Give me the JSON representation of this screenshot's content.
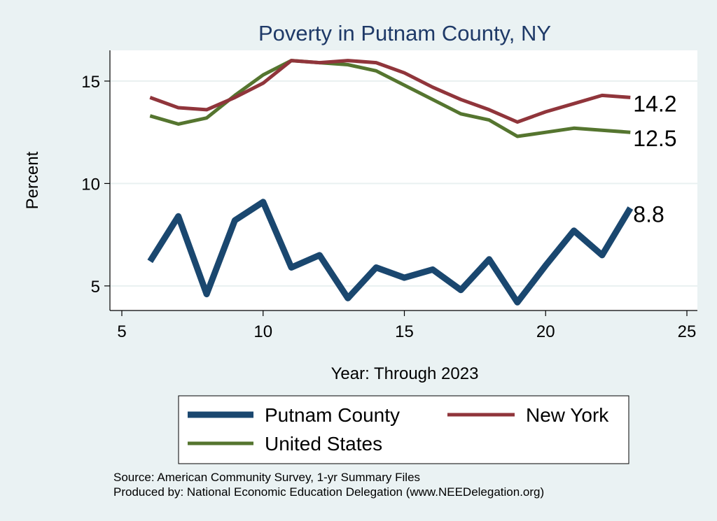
{
  "chart_data": {
    "type": "line",
    "title": "Poverty in Putnam County, NY",
    "xlabel": "Year: Through 2023",
    "ylabel": "Percent",
    "xlim": [
      5,
      25
    ],
    "ylim": [
      3.8,
      16.5
    ],
    "xticks": [
      5,
      10,
      15,
      20,
      25
    ],
    "yticks": [
      5,
      10,
      15
    ],
    "grid": true,
    "x": [
      6,
      7,
      8,
      9,
      10,
      11,
      12,
      13,
      14,
      15,
      16,
      17,
      18,
      19,
      20,
      21,
      22,
      23
    ],
    "series": [
      {
        "name": "Putnam County",
        "color": "#1a476f",
        "values": [
          6.2,
          8.4,
          4.6,
          8.2,
          9.1,
          5.9,
          6.5,
          4.4,
          5.9,
          5.4,
          5.8,
          4.8,
          6.3,
          4.2,
          6.0,
          7.7,
          6.5,
          8.8
        ],
        "end_label": "8.8"
      },
      {
        "name": "New York",
        "color": "#90353b",
        "values": [
          14.2,
          13.7,
          13.6,
          14.2,
          14.9,
          16.0,
          15.9,
          16.0,
          15.9,
          15.4,
          14.7,
          14.1,
          13.6,
          13.0,
          13.5,
          13.9,
          14.3,
          14.2
        ],
        "end_label": "14.2"
      },
      {
        "name": "United States",
        "color": "#55752f",
        "values": [
          13.3,
          12.9,
          13.2,
          14.3,
          15.3,
          16.0,
          15.9,
          15.8,
          15.5,
          14.8,
          14.1,
          13.4,
          13.1,
          12.3,
          12.5,
          12.7,
          12.6,
          12.5
        ],
        "end_label": "12.5"
      }
    ],
    "legend": {
      "position": "bottom",
      "entries": [
        "Putnam County",
        "New York",
        "United States"
      ]
    },
    "notes": [
      "Source: American Community Survey, 1-yr Summary Files",
      "Produced by: National Economic Education Delegation (www.NEEDelegation.org)"
    ]
  },
  "colors": {
    "background": "#eaf2f3",
    "plot_background": "#ffffff",
    "title": "#1f3a68",
    "grid": "#e9f0f0"
  }
}
